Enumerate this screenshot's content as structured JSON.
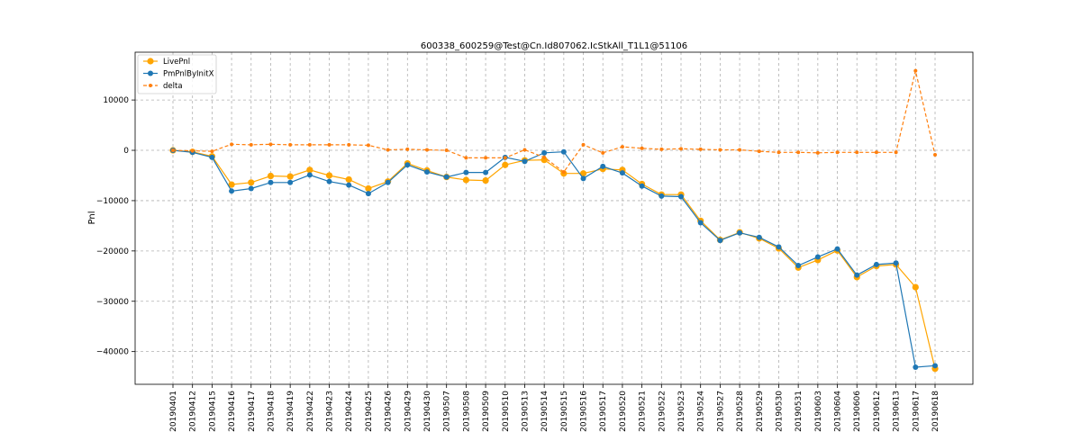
{
  "chart_data": {
    "type": "line",
    "title": "600338_600259@Test@Cn.Id807062.IcStkAll_T1L1@51106",
    "xlabel": "",
    "ylabel": "Pnl",
    "ylim": [
      -46500,
      19500
    ],
    "yticks": [
      10000,
      0,
      -10000,
      -20000,
      -30000,
      -40000
    ],
    "grid": true,
    "legend_position": "top-left",
    "categories": [
      "20190401",
      "20190412",
      "20190415",
      "20190416",
      "20190417",
      "20190418",
      "20190419",
      "20190422",
      "20190423",
      "20190424",
      "20190425",
      "20190426",
      "20190429",
      "20190430",
      "20190507",
      "20190508",
      "20190509",
      "20190510",
      "20190513",
      "20190514",
      "20190515",
      "20190516",
      "20190517",
      "20190520",
      "20190521",
      "20190522",
      "20190523",
      "20190524",
      "20190527",
      "20190528",
      "20190529",
      "20190530",
      "20190531",
      "20190603",
      "20190604",
      "20190606",
      "20190612",
      "20190613",
      "20190617",
      "20190618"
    ],
    "series": [
      {
        "name": "LivePnl",
        "color": "#ffa500",
        "style": "solid",
        "values": [
          0,
          -300,
          -1200,
          -6800,
          -6400,
          -5100,
          -5200,
          -3900,
          -5000,
          -5800,
          -7600,
          -6200,
          -2600,
          -4000,
          -5300,
          -5900,
          -6000,
          -2900,
          -2000,
          -1900,
          -4600,
          -4600,
          -3700,
          -3900,
          -6700,
          -8800,
          -8800,
          -14000,
          -17800,
          -16300,
          -17500,
          -19500,
          -23300,
          -21800,
          -19900,
          -25200,
          -23000,
          -22700,
          -27200,
          -43400
        ]
      },
      {
        "name": "PmPnlByInitX",
        "color": "#1f77b4",
        "style": "solid",
        "values": [
          0,
          -400,
          -1400,
          -8100,
          -7600,
          -6400,
          -6400,
          -4900,
          -6200,
          -6900,
          -8600,
          -6400,
          -2900,
          -4300,
          -5300,
          -4400,
          -4400,
          -1400,
          -2200,
          -500,
          -300,
          -5600,
          -3200,
          -4500,
          -7100,
          -9100,
          -9200,
          -14400,
          -17900,
          -16400,
          -17300,
          -19200,
          -22900,
          -21200,
          -19600,
          -24800,
          -22700,
          -22400,
          -43100,
          -42800
        ]
      },
      {
        "name": "delta",
        "color": "#ff7f0e",
        "style": "dashed",
        "values": [
          0,
          -100,
          -200,
          1200,
          1100,
          1200,
          1100,
          1100,
          1100,
          1100,
          1000,
          100,
          200,
          100,
          0,
          -1500,
          -1500,
          -1500,
          100,
          -1400,
          -4300,
          1100,
          -500,
          700,
          400,
          200,
          300,
          200,
          100,
          100,
          -200,
          -400,
          -400,
          -500,
          -400,
          -400,
          -400,
          -400,
          15800,
          -900
        ]
      }
    ]
  }
}
